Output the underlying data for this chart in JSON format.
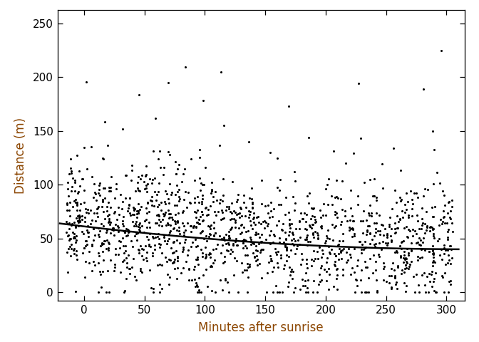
{
  "title": "",
  "xlabel": "Minutes after sunrise",
  "ylabel": "Distance (m)",
  "xlabel_color": "#8B4500",
  "ylabel_color": "#8B4500",
  "xlim": [
    -22,
    315
  ],
  "ylim": [
    -8,
    262
  ],
  "xticks": [
    0,
    50,
    100,
    150,
    200,
    250,
    300
  ],
  "yticks": [
    0,
    50,
    100,
    150,
    200,
    250
  ],
  "background_color": "#ffffff",
  "point_color": "#000000",
  "point_size": 4.5,
  "line_color": "#000000",
  "line_width": 1.8,
  "seed": 42,
  "n_points": 1500,
  "loess_x0": -20,
  "loess_y0": 64,
  "loess_mid_x": 150,
  "loess_mid_y": 46,
  "loess_x1": 310,
  "loess_y1": 40
}
